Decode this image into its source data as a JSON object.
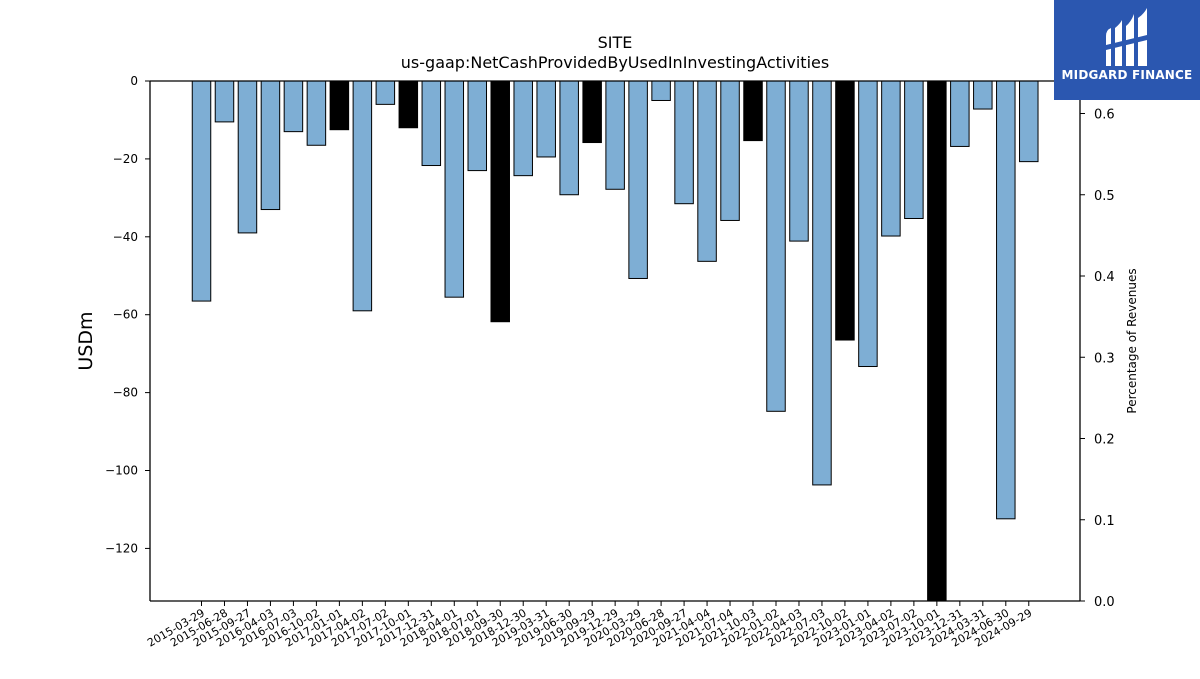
{
  "chart_data": {
    "type": "bar",
    "title": "SITE",
    "subtitle": "us-gaap:NetCashProvidedByUsedInInvestingActivities",
    "ylabel": "USDm",
    "y2label": "Percentage of Revenues",
    "ylim": [
      -133.5,
      0
    ],
    "y2lim": [
      0.0,
      0.64
    ],
    "yticks": [
      0,
      -20,
      -40,
      -60,
      -80,
      -100,
      -120
    ],
    "y2ticks": [
      0.0,
      0.1,
      0.2,
      0.3,
      0.4,
      0.5,
      0.6
    ],
    "categories": [
      "2015-03-29",
      "2015-06-28",
      "2015-09-27",
      "2016-04-03",
      "2016-07-03",
      "2016-10-02",
      "2017-01-01",
      "2017-04-02",
      "2017-07-02",
      "2017-10-01",
      "2017-12-31",
      "2018-04-01",
      "2018-07-01",
      "2018-09-30",
      "2018-12-30",
      "2019-03-31",
      "2019-06-30",
      "2019-09-29",
      "2019-12-29",
      "2020-03-29",
      "2020-06-28",
      "2020-09-27",
      "2021-04-04",
      "2021-07-04",
      "2021-10-03",
      "2022-01-02",
      "2022-04-03",
      "2022-07-03",
      "2022-10-02",
      "2023-01-01",
      "2023-04-02",
      "2023-07-02",
      "2023-10-01",
      "2023-12-31",
      "2024-03-31",
      "2024-06-30",
      "2024-09-29"
    ],
    "values": [
      -56.5,
      -10.5,
      -39,
      -33,
      -13,
      -16.5,
      -12.5,
      -59,
      -6,
      -12,
      -21.7,
      -55.5,
      -23,
      -61.8,
      -24.3,
      -19.5,
      -29.2,
      -15.8,
      -27.8,
      -50.7,
      -5,
      -31.5,
      -46.3,
      -35.8,
      -15.3,
      -84.8,
      -41.1,
      -103.7,
      -66.5,
      -73.3,
      -39.8,
      -35.3,
      -133.5,
      -16.8,
      -7.2,
      -112.4,
      -20.7
    ],
    "bar_colors": [
      "#7eaed4",
      "#7eaed4",
      "#7eaed4",
      "#7eaed4",
      "#7eaed4",
      "#7eaed4",
      "#000000",
      "#7eaed4",
      "#7eaed4",
      "#000000",
      "#7eaed4",
      "#7eaed4",
      "#7eaed4",
      "#000000",
      "#7eaed4",
      "#7eaed4",
      "#7eaed4",
      "#000000",
      "#7eaed4",
      "#7eaed4",
      "#7eaed4",
      "#7eaed4",
      "#7eaed4",
      "#7eaed4",
      "#000000",
      "#7eaed4",
      "#7eaed4",
      "#7eaed4",
      "#000000",
      "#7eaed4",
      "#7eaed4",
      "#7eaed4",
      "#000000",
      "#7eaed4",
      "#7eaed4",
      "#7eaed4",
      "#7eaed4"
    ],
    "grid": false
  },
  "logo": {
    "text": "MIDGARD FINANCE",
    "color": "#2b57b0"
  }
}
